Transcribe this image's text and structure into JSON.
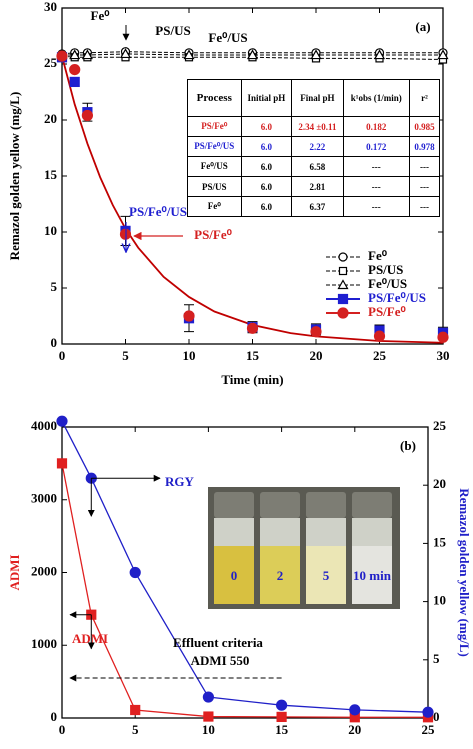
{
  "chart_data": [
    {
      "type": "line",
      "panel_label": "(a)",
      "x_label": "Time (min)",
      "y_label": "Remazol golden yellow (mg/L)",
      "xlim": [
        0,
        30
      ],
      "ylim": [
        0,
        30
      ],
      "xticks": [
        0,
        5,
        10,
        15,
        20,
        25,
        30
      ],
      "yticks": [
        0,
        5,
        10,
        15,
        20,
        25,
        30
      ],
      "x": [
        0,
        1,
        2,
        5,
        10,
        15,
        20,
        25,
        30
      ],
      "legend": "lower right",
      "series": [
        {
          "name": "Fe⁰",
          "color": "#000000",
          "marker": "circle-open",
          "line": "dashed",
          "values": [
            25.9,
            26.0,
            26.0,
            26.1,
            26.0,
            26.0,
            26.0,
            26.0,
            26.0
          ]
        },
        {
          "name": "PS/US",
          "color": "#000000",
          "marker": "square-open",
          "line": "dashed",
          "values": [
            25.7,
            25.6,
            25.6,
            25.6,
            25.6,
            25.6,
            25.5,
            25.5,
            25.4
          ]
        },
        {
          "name": "Fe⁰/US",
          "color": "#000000",
          "marker": "triangle-open",
          "line": "dashed",
          "values": [
            25.8,
            25.8,
            25.8,
            25.9,
            25.8,
            25.8,
            25.8,
            25.8,
            25.8
          ]
        },
        {
          "name": "PS/Fe⁰/US",
          "color": "#1f1fd0",
          "marker": "square",
          "line": "none",
          "values": [
            25.6,
            23.4,
            20.7,
            10.1,
            2.3,
            1.5,
            1.3,
            1.2,
            1.0
          ],
          "errors": [
            0,
            0,
            0.8,
            1.3,
            1.2,
            0.5,
            0.5,
            0.5,
            0.5
          ]
        },
        {
          "name": "PS/Fe⁰",
          "color": "#d42020",
          "marker": "circle",
          "line": "none",
          "values": [
            25.7,
            24.5,
            20.4,
            9.8,
            2.5,
            1.4,
            1.1,
            0.7,
            0.6
          ]
        }
      ],
      "fit": {
        "color": "#c00000",
        "x": [
          0,
          1,
          2,
          3,
          4,
          5,
          6,
          8,
          10,
          12,
          15,
          18,
          20,
          25,
          30
        ],
        "values": [
          25.7,
          21.4,
          17.9,
          14.9,
          12.4,
          10.3,
          8.6,
          6.0,
          4.2,
          2.9,
          1.7,
          0.97,
          0.68,
          0.27,
          0.11
        ]
      },
      "annotations": [
        "Fe⁰",
        "PS/US",
        "Fe⁰/US",
        "PS/Fe⁰/US",
        "PS/Fe⁰"
      ],
      "table": {
        "columns": [
          "Process",
          "Initial pH",
          "Final pH",
          "k¹obs (1/min)",
          "r²"
        ],
        "rows": [
          [
            "PS/Fe⁰",
            "6.0",
            "2.34 ±0.11",
            "0.182",
            "0.985"
          ],
          [
            "PS/Fe⁰/US",
            "6.0",
            "2.22",
            "0.172",
            "0.978"
          ],
          [
            "Fe⁰/US",
            "6.0",
            "6.58",
            "---",
            "---"
          ],
          [
            "PS/US",
            "6.0",
            "2.81",
            "---",
            "---"
          ],
          [
            "Fe⁰",
            "6.0",
            "6.37",
            "---",
            "---"
          ]
        ]
      }
    },
    {
      "type": "line",
      "panel_label": "(b)",
      "x_label": "Time (min)",
      "y_label": "ADMI",
      "y2_label": "Remazol golden yellow (mg/L)",
      "xlim": [
        0,
        25
      ],
      "ylim": [
        0,
        4000
      ],
      "y2lim": [
        0,
        25
      ],
      "xticks": [
        0,
        5,
        10,
        15,
        20,
        25
      ],
      "yticks": [
        0,
        1000,
        2000,
        3000,
        4000
      ],
      "y2ticks": [
        0,
        5,
        10,
        15,
        20,
        25
      ],
      "x": [
        0,
        2,
        5,
        10,
        15,
        20,
        25
      ],
      "series": [
        {
          "name": "ADMI",
          "color": "#e02020",
          "marker": "square",
          "line": "solid",
          "values": [
            3500,
            1420,
            110,
            20,
            15,
            10,
            10
          ]
        },
        {
          "name": "RGY",
          "color": "#2020c8",
          "marker": "circle",
          "line": "solid",
          "axis": "y2",
          "values": [
            25.5,
            20.6,
            12.5,
            1.8,
            1.1,
            0.7,
            0.5
          ]
        }
      ],
      "reference_line": {
        "value": 550,
        "label": "ADMI 550"
      },
      "annotations": [
        "Effluent criteria"
      ],
      "inset_labels": [
        "0",
        "2",
        "5",
        "10 min"
      ]
    }
  ]
}
